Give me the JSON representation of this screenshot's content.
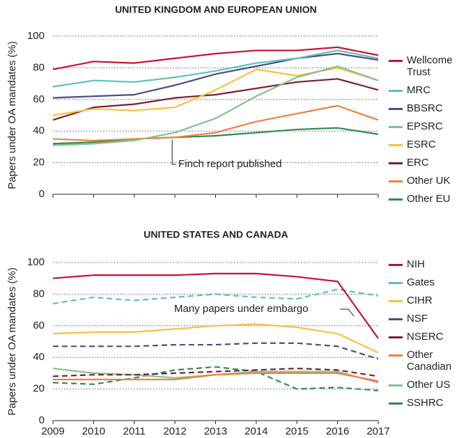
{
  "chart_data": [
    {
      "type": "line",
      "title": "UNITED KINGDOM AND EUROPEAN UNION",
      "ylabel": "Papers under OA mandates (%)",
      "categories": [
        null,
        null,
        null,
        null,
        null,
        null,
        null,
        null,
        null
      ],
      "ylim": [
        0,
        100
      ],
      "yticks": [
        0,
        20,
        40,
        60,
        80,
        100
      ],
      "grid": true,
      "annotation": "Finch report published",
      "series": [
        {
          "name": "Wellcome Trust",
          "color": "#c8102e",
          "values": [
            79,
            84,
            83,
            86,
            89,
            91,
            91,
            93,
            88
          ]
        },
        {
          "name": "MRC",
          "color": "#5bc0be",
          "values": [
            68,
            72,
            71,
            74,
            78,
            83,
            86,
            91,
            86
          ]
        },
        {
          "name": "BBSRC",
          "color": "#4b4b8c",
          "values": [
            61,
            62,
            63,
            69,
            76,
            81,
            86,
            89,
            85
          ]
        },
        {
          "name": "EPSRC",
          "color": "#7dc48e",
          "values": [
            31,
            32,
            34,
            39,
            48,
            62,
            74,
            81,
            72
          ]
        },
        {
          "name": "ESRC",
          "color": "#fbbf3c",
          "values": [
            50,
            54,
            53,
            55,
            66,
            79,
            75,
            80,
            72
          ]
        },
        {
          "name": "ERC",
          "color": "#7a1f2b",
          "values": [
            47,
            55,
            57,
            61,
            63,
            67,
            71,
            73,
            66
          ]
        },
        {
          "name": "Other UK",
          "color": "#f07f3c",
          "values": [
            35,
            34,
            35,
            36,
            39,
            46,
            51,
            56,
            47
          ]
        },
        {
          "name": "Other EU",
          "color": "#2e8b57",
          "values": [
            32,
            33,
            35,
            36,
            37,
            39,
            41,
            42,
            38
          ]
        }
      ]
    },
    {
      "type": "line",
      "title": "UNITED STATES AND CANADA",
      "ylabel": "Papers under OA mandates (%)",
      "x": [
        2009,
        2010,
        2011,
        2012,
        2013,
        2014,
        2015,
        2016,
        2017
      ],
      "xlim": [
        2009,
        2017
      ],
      "xticks": [
        2009,
        2010,
        2011,
        2012,
        2013,
        2014,
        2015,
        2016,
        2017
      ],
      "ylim": [
        0,
        100
      ],
      "yticks": [
        0,
        20,
        40,
        60,
        80,
        100
      ],
      "grid": true,
      "annotation": "Many papers under embargo",
      "series": [
        {
          "name": "NIH",
          "color": "#c8102e",
          "values": [
            90,
            92,
            92,
            92,
            93,
            93,
            91,
            88,
            52
          ]
        },
        {
          "name": "Gates",
          "color": "#5bc0be",
          "dashed": true,
          "values": [
            74,
            78,
            76,
            78,
            80,
            78,
            77,
            83,
            79
          ]
        },
        {
          "name": "CIHR",
          "color": "#fbbf3c",
          "values": [
            55,
            56,
            56,
            58,
            60,
            61,
            59,
            55,
            43
          ]
        },
        {
          "name": "NSF",
          "color": "#4b4b8c",
          "dashed": true,
          "values": [
            47,
            47,
            47,
            48,
            48,
            49,
            49,
            47,
            39
          ]
        },
        {
          "name": "NSERC",
          "color": "#7a1f2b",
          "dashed": true,
          "values": [
            28,
            29,
            29,
            30,
            31,
            32,
            33,
            32,
            28
          ]
        },
        {
          "name": "Other Canadian",
          "color": "#f07f3c",
          "values": [
            26,
            26,
            26,
            26,
            29,
            30,
            30,
            30,
            25
          ]
        },
        {
          "name": "Other US",
          "color": "#7dc48e",
          "values": [
            33,
            30,
            29,
            27,
            29,
            31,
            31,
            31,
            24
          ]
        },
        {
          "name": "SSHRC",
          "color": "#2e8b57",
          "dashed": true,
          "values": [
            24,
            23,
            27,
            32,
            34,
            31,
            20,
            21,
            19
          ]
        }
      ]
    }
  ]
}
